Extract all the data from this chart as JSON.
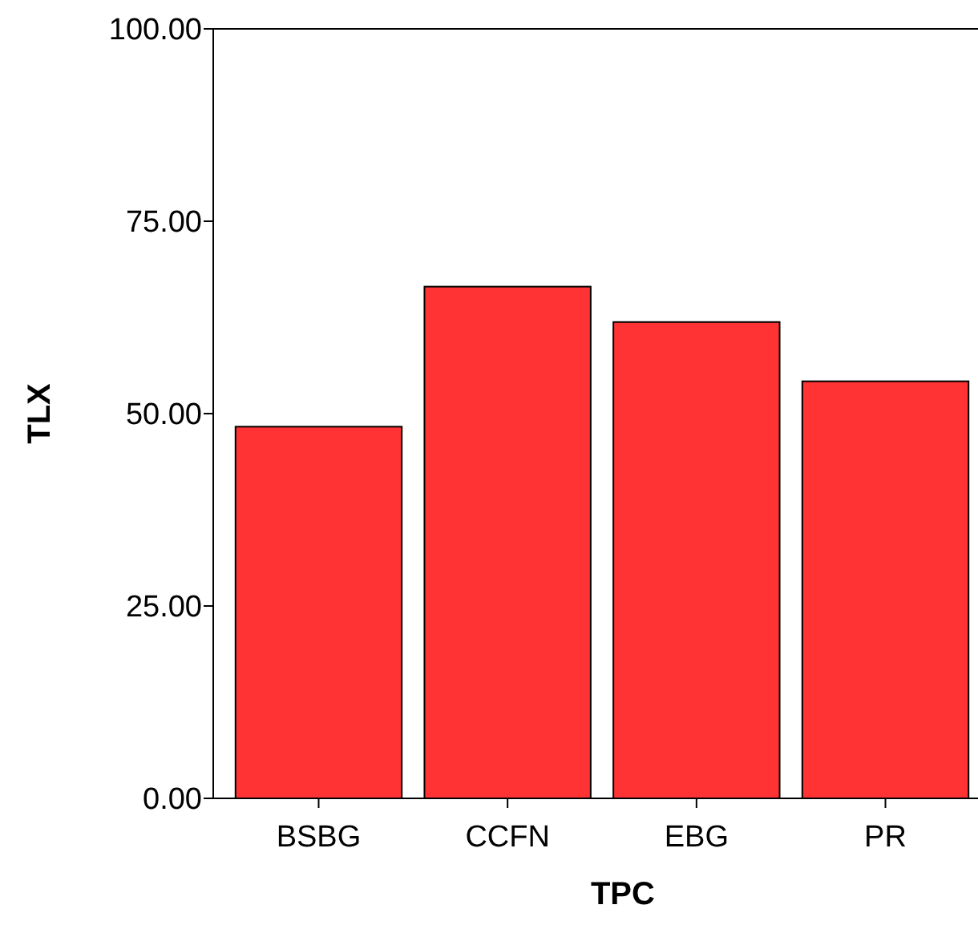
{
  "chart_data": {
    "type": "bar",
    "xlabel": "TPC",
    "ylabel": "TLX",
    "categories": [
      "BSBG",
      "CCFN",
      "EBG",
      "PR"
    ],
    "values": [
      48.3,
      66.5,
      61.9,
      54.2
    ],
    "color": "#ff3333",
    "ylim": [
      0,
      100
    ],
    "yticks": [
      {
        "value": 0,
        "label": "0.00"
      },
      {
        "value": 25,
        "label": "25.00"
      },
      {
        "value": 50,
        "label": "50.00"
      },
      {
        "value": 75,
        "label": "75.00"
      },
      {
        "value": 100,
        "label": "100.00"
      }
    ],
    "grid": false
  }
}
